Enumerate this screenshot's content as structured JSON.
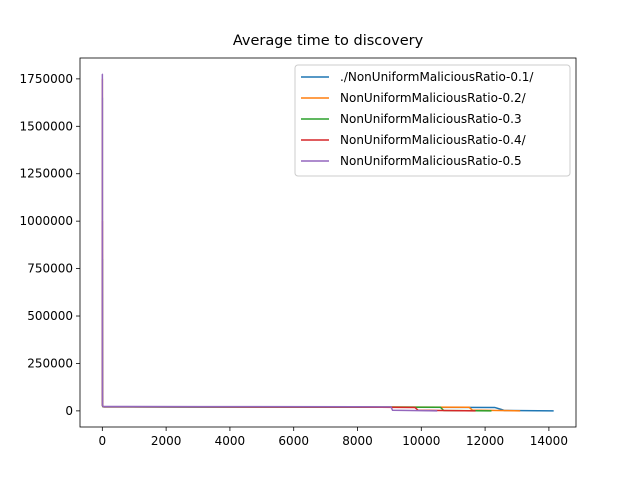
{
  "chart_data": {
    "type": "line",
    "title": "Average time to discovery",
    "xlabel": "",
    "ylabel": "",
    "xlim": [
      -700,
      14850
    ],
    "ylim": [
      -85000,
      1860000
    ],
    "xticks": [
      0,
      2000,
      4000,
      6000,
      8000,
      10000,
      12000,
      14000
    ],
    "xtick_labels": [
      "0",
      "2000",
      "4000",
      "6000",
      "8000",
      "10000",
      "12000",
      "14000"
    ],
    "yticks": [
      0,
      250000,
      500000,
      750000,
      1000000,
      1250000,
      1500000,
      1750000
    ],
    "ytick_labels": [
      "0",
      "250000",
      "500000",
      "750000",
      "1000000",
      "1250000",
      "1500000",
      "1750000"
    ],
    "grid": false,
    "legend_position": "top-right",
    "series": [
      {
        "name": "./NonUniformMaliciousRatio-0.1/",
        "color": "#1f77b4",
        "x": [
          0,
          1,
          1,
          2,
          3,
          4,
          6,
          10,
          20,
          50,
          3000,
          8000,
          12300,
          12500,
          12600,
          14150
        ],
        "y": [
          1650000,
          1650000,
          1200000,
          700000,
          300000,
          80000,
          30000,
          25000,
          22000,
          21000,
          20500,
          20000,
          18000,
          8000,
          2000,
          0
        ]
      },
      {
        "name": "NonUniformMaliciousRatio-0.2/",
        "color": "#ff7f0e",
        "x": [
          0,
          1,
          1,
          2,
          3,
          4,
          6,
          10,
          20,
          50,
          3000,
          8000,
          11500,
          11600,
          12400,
          13100
        ],
        "y": [
          1750000,
          1750000,
          1250000,
          750000,
          350000,
          90000,
          32000,
          26000,
          23000,
          22000,
          21500,
          21000,
          19000,
          4000,
          2000,
          0
        ]
      },
      {
        "name": "NonUniformMaliciousRatio-0.3",
        "color": "#2ca02c",
        "x": [
          0,
          1,
          1,
          2,
          3,
          4,
          6,
          10,
          20,
          50,
          3000,
          8000,
          10600,
          10700,
          12200
        ],
        "y": [
          800000,
          800000,
          600000,
          400000,
          200000,
          70000,
          30000,
          25000,
          22000,
          21000,
          20500,
          20000,
          19000,
          2000,
          0
        ]
      },
      {
        "name": "NonUniformMaliciousRatio-0.4/",
        "color": "#d62728",
        "x": [
          0,
          1,
          1,
          2,
          3,
          4,
          6,
          10,
          20,
          50,
          3000,
          8000,
          9800,
          9900,
          11700
        ],
        "y": [
          1000000,
          1000000,
          700000,
          450000,
          220000,
          80000,
          32000,
          26000,
          23000,
          22000,
          21000,
          20000,
          18000,
          3000,
          0
        ]
      },
      {
        "name": "NonUniformMaliciousRatio-0.5",
        "color": "#9467bd",
        "x": [
          0,
          1,
          1,
          2,
          3,
          4,
          6,
          10,
          20,
          50,
          3000,
          8000,
          9050,
          9100,
          10500
        ],
        "y": [
          1775000,
          1775000,
          1300000,
          800000,
          380000,
          100000,
          35000,
          27000,
          24000,
          23000,
          22500,
          22000,
          21000,
          3000,
          0
        ]
      }
    ]
  }
}
